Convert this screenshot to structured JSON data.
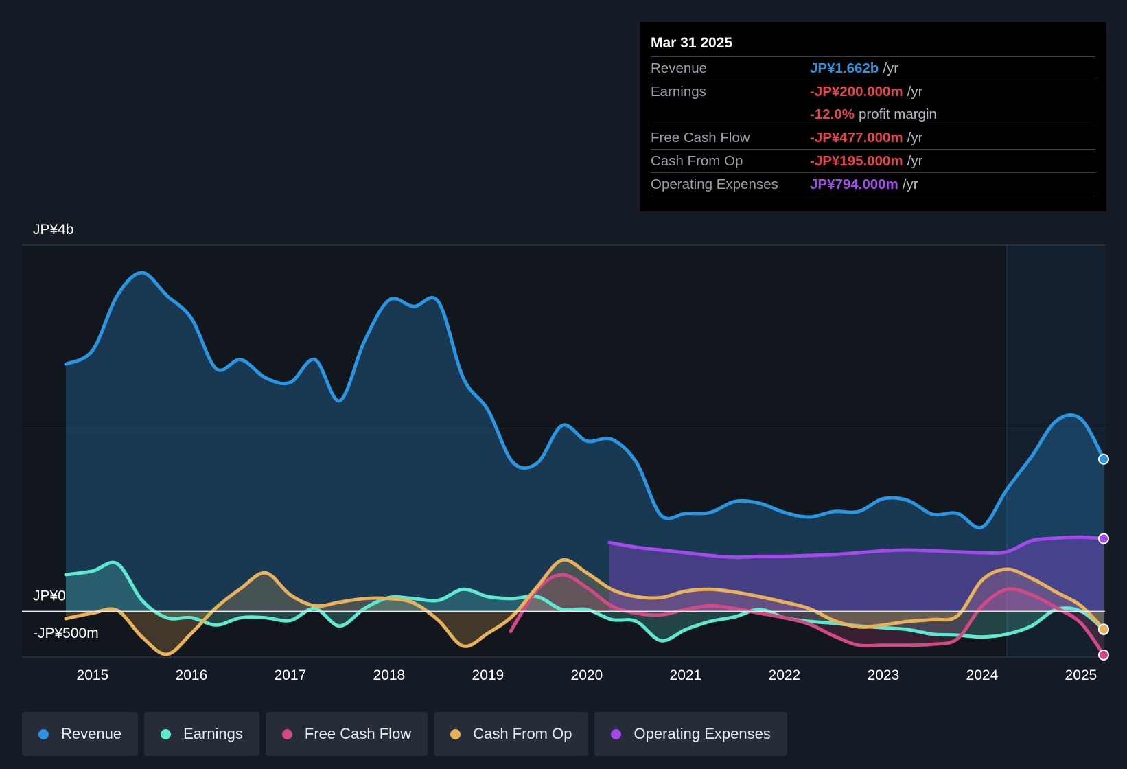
{
  "tooltip": {
    "date": "Mar 31 2025",
    "rows": [
      {
        "label": "Revenue",
        "value": "JP¥1.662b",
        "unit": "/yr",
        "color": "#2b95e0"
      },
      {
        "label": "Earnings",
        "value": "-JP¥200.000m",
        "unit": "/yr",
        "color": "#e8434f"
      },
      {
        "label": "",
        "value": "-12.0%",
        "unit": "profit margin",
        "color": "#e8434f"
      },
      {
        "label": "Free Cash Flow",
        "value": "-JP¥477.000m",
        "unit": "/yr",
        "color": "#e8434f"
      },
      {
        "label": "Cash From Op",
        "value": "-JP¥195.000m",
        "unit": "/yr",
        "color": "#e8434f"
      },
      {
        "label": "Operating Expenses",
        "value": "JP¥794.000m",
        "unit": "/yr",
        "color": "#a24bea"
      }
    ]
  },
  "legend": [
    {
      "label": "Revenue",
      "color": "#2b95e0"
    },
    {
      "label": "Earnings",
      "color": "#5ee8d0"
    },
    {
      "label": "Free Cash Flow",
      "color": "#d04a86"
    },
    {
      "label": "Cash From Op",
      "color": "#e8b15c"
    },
    {
      "label": "Operating Expenses",
      "color": "#a24bea"
    }
  ],
  "chart_data": {
    "type": "line",
    "title": "",
    "y_axis_labels": [
      "JP¥4b",
      "JP¥0",
      "-JP¥500m"
    ],
    "ylim": [
      -500,
      4000
    ],
    "xlim": [
      2014.73,
      2025.23
    ],
    "x_ticks": [
      "2015",
      "2016",
      "2017",
      "2018",
      "2019",
      "2020",
      "2021",
      "2022",
      "2023",
      "2024",
      "2025"
    ],
    "x_tick_values": [
      2015,
      2016,
      2017,
      2018,
      2019,
      2020,
      2021,
      2022,
      2023,
      2024,
      2025
    ],
    "gridlines": [
      0,
      2000,
      4000
    ],
    "forecast_region_start": 2024.25,
    "unit": "JP¥ millions",
    "series": [
      {
        "name": "Revenue",
        "color": "#2b95e0",
        "fill": true,
        "x": [
          2014.73,
          2015.0,
          2015.25,
          2015.5,
          2015.75,
          2016.0,
          2016.25,
          2016.5,
          2016.75,
          2017.0,
          2017.25,
          2017.5,
          2017.75,
          2018.0,
          2018.25,
          2018.5,
          2018.75,
          2019.0,
          2019.25,
          2019.5,
          2019.75,
          2020.0,
          2020.25,
          2020.5,
          2020.75,
          2021.0,
          2021.25,
          2021.5,
          2021.75,
          2022.0,
          2022.25,
          2022.5,
          2022.75,
          2023.0,
          2023.25,
          2023.5,
          2023.75,
          2024.0,
          2024.25,
          2024.5,
          2024.75,
          2025.0,
          2025.23
        ],
        "y": [
          2700,
          2850,
          3450,
          3700,
          3450,
          3200,
          2650,
          2750,
          2550,
          2500,
          2750,
          2300,
          2950,
          3400,
          3330,
          3380,
          2550,
          2200,
          1630,
          1620,
          2030,
          1860,
          1880,
          1630,
          1050,
          1070,
          1080,
          1200,
          1180,
          1080,
          1030,
          1090,
          1090,
          1230,
          1210,
          1060,
          1070,
          920,
          1330,
          1690,
          2080,
          2100,
          1662
        ]
      },
      {
        "name": "Earnings",
        "color": "#5ee8d0",
        "fill": true,
        "x": [
          2014.73,
          2015.0,
          2015.25,
          2015.5,
          2015.75,
          2016.0,
          2016.25,
          2016.5,
          2016.75,
          2017.0,
          2017.25,
          2017.5,
          2017.75,
          2018.0,
          2018.25,
          2018.5,
          2018.75,
          2019.0,
          2019.25,
          2019.5,
          2019.75,
          2020.0,
          2020.25,
          2020.5,
          2020.75,
          2021.0,
          2021.25,
          2021.5,
          2021.75,
          2022.0,
          2022.25,
          2022.5,
          2022.75,
          2023.0,
          2023.25,
          2023.5,
          2023.75,
          2024.0,
          2024.25,
          2024.5,
          2024.75,
          2025.0,
          2025.23
        ],
        "y": [
          400,
          440,
          520,
          120,
          -70,
          -70,
          -150,
          -70,
          -70,
          -100,
          30,
          -160,
          30,
          150,
          140,
          120,
          240,
          160,
          140,
          160,
          20,
          20,
          -90,
          -110,
          -320,
          -200,
          -110,
          -60,
          20,
          -70,
          -110,
          -130,
          -160,
          -180,
          -200,
          -250,
          -260,
          -280,
          -250,
          -160,
          20,
          0,
          -200
        ]
      },
      {
        "name": "Free Cash Flow",
        "color": "#d04a86",
        "fill": true,
        "x": [
          2019.23,
          2019.5,
          2019.75,
          2020.0,
          2020.25,
          2020.5,
          2020.75,
          2021.0,
          2021.25,
          2021.5,
          2021.75,
          2022.0,
          2022.25,
          2022.5,
          2022.75,
          2023.0,
          2023.25,
          2023.5,
          2023.75,
          2024.0,
          2024.25,
          2024.5,
          2024.75,
          2025.0,
          2025.23
        ],
        "y": [
          -220,
          240,
          400,
          260,
          60,
          -20,
          -40,
          20,
          60,
          30,
          -20,
          -70,
          -140,
          -270,
          -370,
          -370,
          -370,
          -360,
          -300,
          60,
          240,
          180,
          40,
          -130,
          -477
        ]
      },
      {
        "name": "Cash From Op",
        "color": "#e8b15c",
        "fill": true,
        "x": [
          2014.73,
          2015.0,
          2015.25,
          2015.5,
          2015.75,
          2016.0,
          2016.25,
          2016.5,
          2016.75,
          2017.0,
          2017.25,
          2017.5,
          2017.75,
          2018.0,
          2018.25,
          2018.5,
          2018.75,
          2019.0,
          2019.25,
          2019.5,
          2019.75,
          2020.0,
          2020.25,
          2020.5,
          2020.75,
          2021.0,
          2021.25,
          2021.5,
          2021.75,
          2022.0,
          2022.25,
          2022.5,
          2022.75,
          2023.0,
          2023.25,
          2023.5,
          2023.75,
          2024.0,
          2024.25,
          2024.5,
          2024.75,
          2025.0,
          2025.23
        ],
        "y": [
          -80,
          -20,
          10,
          -280,
          -470,
          -240,
          40,
          250,
          420,
          180,
          60,
          100,
          140,
          140,
          90,
          -100,
          -380,
          -240,
          -50,
          270,
          560,
          420,
          240,
          160,
          150,
          220,
          240,
          210,
          160,
          100,
          30,
          -100,
          -170,
          -150,
          -110,
          -90,
          -50,
          340,
          460,
          360,
          210,
          60,
          -195
        ]
      },
      {
        "name": "Operating Expenses",
        "color": "#a24bea",
        "fill": true,
        "x": [
          2020.23,
          2020.5,
          2020.75,
          2021.0,
          2021.25,
          2021.5,
          2021.75,
          2022.0,
          2022.25,
          2022.5,
          2022.75,
          2023.0,
          2023.25,
          2023.5,
          2023.75,
          2024.0,
          2024.25,
          2024.5,
          2024.75,
          2025.0,
          2025.23
        ],
        "y": [
          750,
          700,
          670,
          640,
          610,
          590,
          600,
          600,
          610,
          620,
          640,
          660,
          670,
          660,
          650,
          640,
          650,
          770,
          800,
          810,
          794
        ]
      }
    ]
  }
}
